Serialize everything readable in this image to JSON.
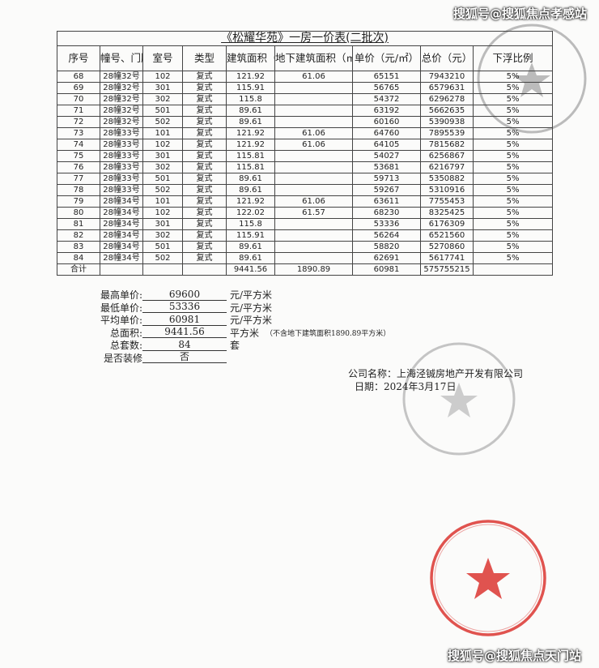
{
  "watermark_top": "搜狐号@搜狐焦点孝感站",
  "watermark_bottom": "搜狐号@搜狐焦点天门站",
  "table": {
    "title": "《松耀华苑》一房一价表(二批次)",
    "headers": [
      "序号",
      "幢号、门牌号",
      "室号",
      "类型",
      "建筑面积（㎡）",
      "地下建筑面积（㎡）",
      "单价（元/㎡）",
      "总价（元）",
      "下浮比例"
    ],
    "rows": [
      [
        "68",
        "28幢32号",
        "102",
        "复式",
        "121.92",
        "61.06",
        "65151",
        "7943210",
        "5%"
      ],
      [
        "69",
        "28幢32号",
        "301",
        "复式",
        "115.91",
        "",
        "56765",
        "6579631",
        "5%"
      ],
      [
        "70",
        "28幢32号",
        "302",
        "复式",
        "115.8",
        "",
        "54372",
        "6296278",
        "5%"
      ],
      [
        "71",
        "28幢32号",
        "501",
        "复式",
        "89.61",
        "",
        "63192",
        "5662635",
        "5%"
      ],
      [
        "72",
        "28幢32号",
        "502",
        "复式",
        "89.61",
        "",
        "60160",
        "5390938",
        "5%"
      ],
      [
        "73",
        "28幢33号",
        "101",
        "复式",
        "121.92",
        "61.06",
        "64760",
        "7895539",
        "5%"
      ],
      [
        "74",
        "28幢33号",
        "102",
        "复式",
        "121.92",
        "61.06",
        "64105",
        "7815682",
        "5%"
      ],
      [
        "75",
        "28幢33号",
        "301",
        "复式",
        "115.81",
        "",
        "54027",
        "6256867",
        "5%"
      ],
      [
        "76",
        "28幢33号",
        "302",
        "复式",
        "115.81",
        "",
        "53681",
        "6216797",
        "5%"
      ],
      [
        "77",
        "28幢33号",
        "501",
        "复式",
        "89.61",
        "",
        "59713",
        "5350882",
        "5%"
      ],
      [
        "78",
        "28幢33号",
        "502",
        "复式",
        "89.61",
        "",
        "59267",
        "5310916",
        "5%"
      ],
      [
        "79",
        "28幢34号",
        "101",
        "复式",
        "121.92",
        "61.06",
        "63611",
        "7755453",
        "5%"
      ],
      [
        "80",
        "28幢34号",
        "102",
        "复式",
        "122.02",
        "61.57",
        "68230",
        "8325425",
        "5%"
      ],
      [
        "81",
        "28幢34号",
        "301",
        "复式",
        "115.8",
        "",
        "53336",
        "6176309",
        "5%"
      ],
      [
        "82",
        "28幢34号",
        "302",
        "复式",
        "115.91",
        "",
        "56264",
        "6521560",
        "5%"
      ],
      [
        "83",
        "28幢34号",
        "501",
        "复式",
        "89.61",
        "",
        "58820",
        "5270860",
        "5%"
      ],
      [
        "84",
        "28幢34号",
        "502",
        "复式",
        "89.61",
        "",
        "62691",
        "5617741",
        "5%"
      ]
    ],
    "total": [
      "合计",
      "",
      "",
      "",
      "9441.56",
      "1890.89",
      "60981",
      "575755215",
      ""
    ]
  },
  "summary": [
    {
      "label": "最高单价:",
      "value": "69600",
      "unit": "元/平方米"
    },
    {
      "label": "最低单价:",
      "value": "53336",
      "unit": "元/平方米"
    },
    {
      "label": "平均单价:",
      "value": "60981",
      "unit": "元/平方米"
    },
    {
      "label": "总面积:",
      "value": "9441.56",
      "unit": "平方米",
      "note": "（不含地下建筑面积1890.89平方米）"
    },
    {
      "label": "总套数:",
      "value": "84",
      "unit": "套"
    },
    {
      "label": "是否装修",
      "value": "否",
      "unit": ""
    }
  ],
  "company": {
    "name": "公司名称：上海泾铖房地产开发有限公司",
    "date": "日期：2024年3月17日"
  },
  "seal": {
    "text": "上海泾铖房地产开发有限公司",
    "color": "#e0534f"
  }
}
